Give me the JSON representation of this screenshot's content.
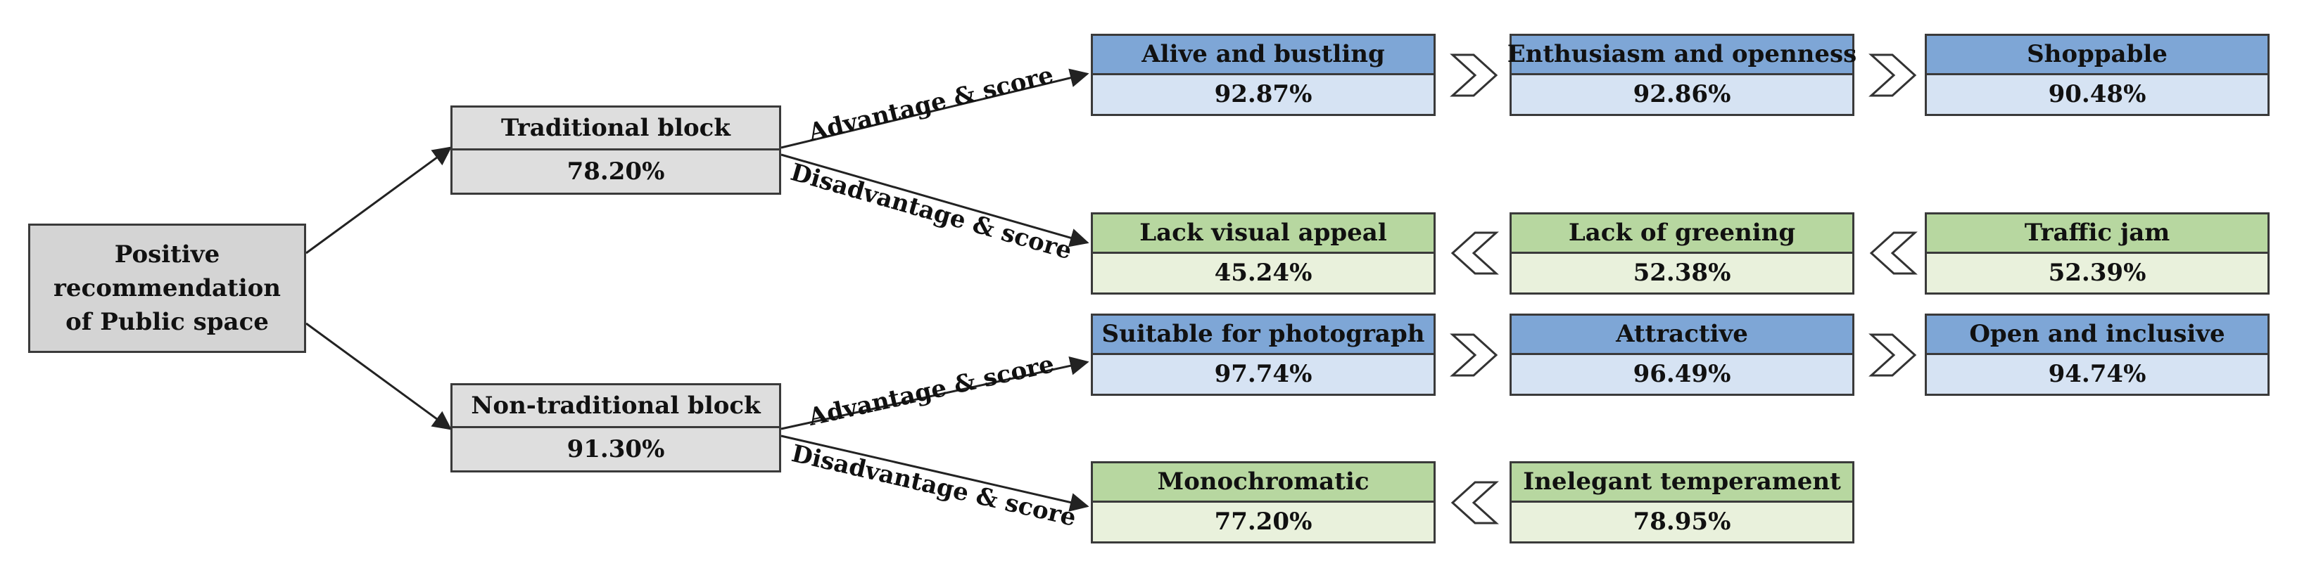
{
  "root": {
    "label": "Positive\nrecommendation\nof  Public space"
  },
  "edge_labels": {
    "advantage": "Advantage & score",
    "disadvantage": "Disadvantage & score"
  },
  "blocks": [
    {
      "name": "Traditional block",
      "score": "78.20%",
      "advantages": [
        {
          "label": "Alive and bustling",
          "score": "92.87%"
        },
        {
          "label": "Enthusiasm and openness",
          "score": "92.86%"
        },
        {
          "label": "Shoppable",
          "score": "90.48%"
        }
      ],
      "disadvantages": [
        {
          "label": "Lack visual appeal",
          "score": "45.24%"
        },
        {
          "label": "Lack of greening",
          "score": "52.38%"
        },
        {
          "label": "Traffic jam",
          "score": "52.39%"
        }
      ]
    },
    {
      "name": "Non-traditional block",
      "score": "91.30%",
      "advantages": [
        {
          "label": "Suitable for photograph",
          "score": "97.74%"
        },
        {
          "label": "Attractive",
          "score": "96.49%"
        },
        {
          "label": "Open and inclusive",
          "score": "94.74%"
        }
      ],
      "disadvantages": [
        {
          "label": "Monochromatic",
          "score": "77.20%"
        },
        {
          "label": "Inelegant temperament",
          "score": "78.95%"
        }
      ]
    }
  ],
  "colors": {
    "advantage_header": "#7ea6d6",
    "advantage_value": "#d6e3f3",
    "disadvantage_header": "#b7d7a0",
    "disadvantage_value": "#e9f1dc",
    "neutral": "#d4d4d4"
  }
}
